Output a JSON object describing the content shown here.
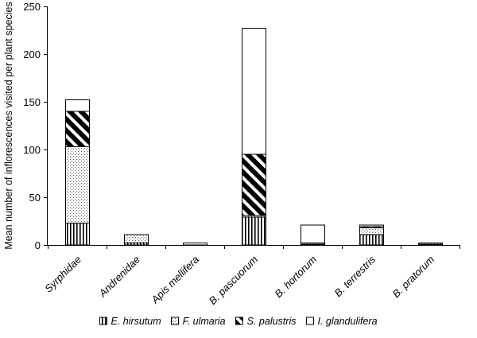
{
  "chart_data": {
    "type": "bar",
    "stacked": true,
    "title": "",
    "xlabel": "",
    "ylabel": "Mean number of inflorescences visited per plant species",
    "ylim": [
      0,
      250
    ],
    "yticks": [
      0,
      50,
      100,
      150,
      200,
      250
    ],
    "grid": false,
    "legend_position": "bottom",
    "categories": [
      "Syrphidae",
      "Andrenidae",
      "Apis mellifera",
      "B. pascuorum",
      "B. hortorum",
      "B. terrestris",
      "B. pratorum"
    ],
    "series": [
      {
        "name": "E. hirsutum",
        "pattern": "vertical-lines",
        "values": [
          23,
          2,
          0,
          29,
          1,
          11,
          0.5
        ]
      },
      {
        "name": "F. ulmaria",
        "pattern": "dots",
        "values": [
          80,
          9,
          0,
          2,
          1,
          7,
          1
        ]
      },
      {
        "name": "S. palustris",
        "pattern": "diagonal-black",
        "values": [
          37,
          0,
          0,
          64,
          0,
          1,
          0
        ]
      },
      {
        "name": "I. glandulifera",
        "pattern": "white",
        "values": [
          12,
          0,
          2,
          132,
          19,
          2,
          0.5
        ]
      }
    ]
  }
}
